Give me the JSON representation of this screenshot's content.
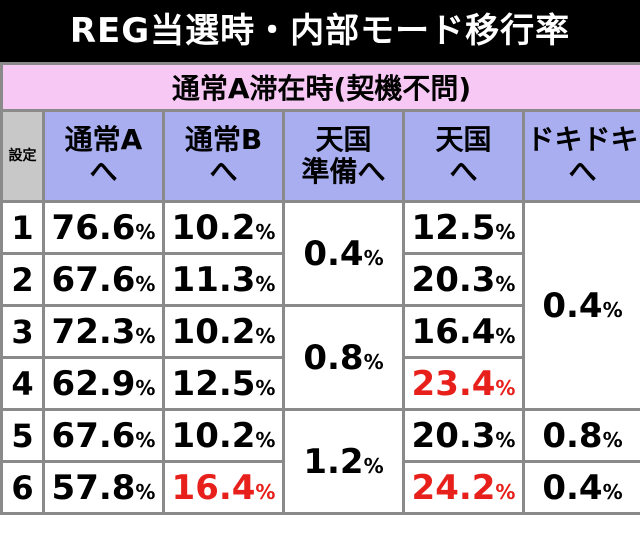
{
  "header": {
    "title": "REG当選時・内部モード移行率"
  },
  "table": {
    "caption": "通常A滞在時(契機不問)",
    "columns": [
      "設定",
      "通常A\nへ",
      "通常B\nへ",
      "天国\n準備へ",
      "天国\nへ",
      "ドキドキ\nへ"
    ],
    "rows": [
      {
        "setting": "1",
        "cells": [
          {
            "value": "76.6",
            "unit": "%"
          },
          {
            "value": "10.2",
            "unit": "%"
          },
          {
            "value": "0.4",
            "unit": "%",
            "rowspan": 2
          },
          {
            "value": "12.5",
            "unit": "%"
          },
          {
            "value": "0.4",
            "unit": "%",
            "rowspan": 4
          }
        ]
      },
      {
        "setting": "2",
        "cells": [
          {
            "value": "67.6",
            "unit": "%"
          },
          {
            "value": "11.3",
            "unit": "%"
          },
          {
            "value": "20.3",
            "unit": "%"
          }
        ]
      },
      {
        "setting": "3",
        "cells": [
          {
            "value": "72.3",
            "unit": "%"
          },
          {
            "value": "10.2",
            "unit": "%"
          },
          {
            "value": "0.8",
            "unit": "%",
            "rowspan": 2
          },
          {
            "value": "16.4",
            "unit": "%"
          }
        ]
      },
      {
        "setting": "4",
        "cells": [
          {
            "value": "62.9",
            "unit": "%"
          },
          {
            "value": "12.5",
            "unit": "%"
          },
          {
            "value": "23.4",
            "unit": "%",
            "highlight": true
          }
        ]
      },
      {
        "setting": "5",
        "cells": [
          {
            "value": "67.6",
            "unit": "%"
          },
          {
            "value": "10.2",
            "unit": "%"
          },
          {
            "value": "1.2",
            "unit": "%",
            "rowspan": 2
          },
          {
            "value": "20.3",
            "unit": "%"
          },
          {
            "value": "0.8",
            "unit": "%"
          }
        ]
      },
      {
        "setting": "6",
        "cells": [
          {
            "value": "57.8",
            "unit": "%"
          },
          {
            "value": "16.4",
            "unit": "%",
            "highlight": true
          },
          {
            "value": "24.2",
            "unit": "%",
            "highlight": true
          },
          {
            "value": "0.4",
            "unit": "%"
          }
        ]
      }
    ]
  }
}
